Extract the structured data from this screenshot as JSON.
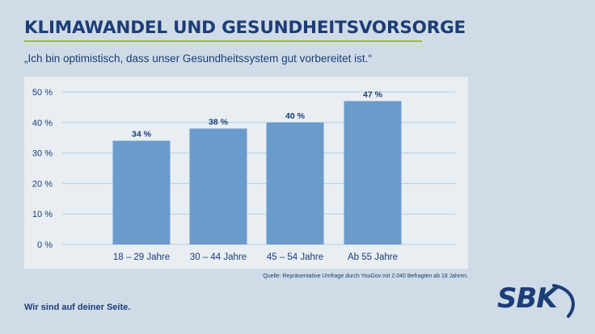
{
  "header": {
    "title": "KLIMAWANDEL UND GESUNDHEITSVORSORGE",
    "subtitle": "„Ich bin optimistisch, dass unser Gesundheitssystem gut vorbereitet ist.“"
  },
  "chart_data": {
    "type": "bar",
    "title": "",
    "xlabel": "",
    "ylabel": "",
    "categories": [
      "18 – 29 Jahre",
      "30 – 44 Jahre",
      "45 – 54 Jahre",
      "Ab 55 Jahre"
    ],
    "values": [
      34,
      38,
      40,
      47
    ],
    "value_labels": [
      "34 %",
      "38 %",
      "40 %",
      "47 %"
    ],
    "y_ticks": [
      0,
      10,
      20,
      30,
      40,
      50
    ],
    "y_tick_labels": [
      "0 %",
      "10 %",
      "20 %",
      "30 %",
      "40 %",
      "50 %"
    ],
    "ylim": [
      0,
      50
    ],
    "grid": true,
    "bar_color": "#6a9bcb",
    "grid_color": "#b8cde0"
  },
  "footer": {
    "source": "Quelle: Repräsentative Umfrage durch YouGov mit 2.040 Befragten ab 18 Jahren.",
    "slogan": "Wir sind auf deiner Seite.",
    "logo_text": "SBK"
  },
  "colors": {
    "background": "#cfdbe6",
    "panel": "#e8eef2",
    "brand": "#1c3d78",
    "accent": "#9cc21e"
  }
}
